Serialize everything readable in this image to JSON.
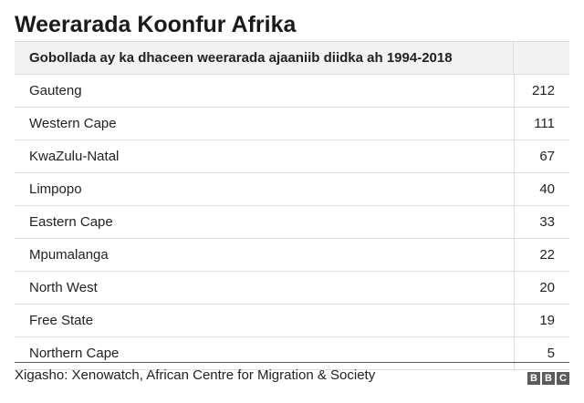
{
  "title": "Weerarada Koonfur Afrika",
  "table_header": "Gobollada ay ka dhaceen weerarada ajaaniib diidka ah 1994-2018",
  "chart_data": {
    "type": "table",
    "title": "Weerarada Koonfur Afrika",
    "columns": [
      "Gobollada ay ka dhaceen weerarada ajaaniib diidka ah 1994-2018",
      ""
    ],
    "rows": [
      {
        "label": "Gauteng",
        "value": 212
      },
      {
        "label": "Western Cape",
        "value": 111
      },
      {
        "label": "KwaZulu-Natal",
        "value": 67
      },
      {
        "label": "Limpopo",
        "value": 40
      },
      {
        "label": "Eastern Cape",
        "value": 33
      },
      {
        "label": "Mpumalanga",
        "value": 22
      },
      {
        "label": "North West",
        "value": 20
      },
      {
        "label": "Free State",
        "value": 19
      },
      {
        "label": "Northern Cape",
        "value": 5
      }
    ]
  },
  "source": "Xigasho: Xenowatch, African Centre for Migration & Society",
  "logo": {
    "letters": [
      "B",
      "B",
      "C"
    ]
  }
}
